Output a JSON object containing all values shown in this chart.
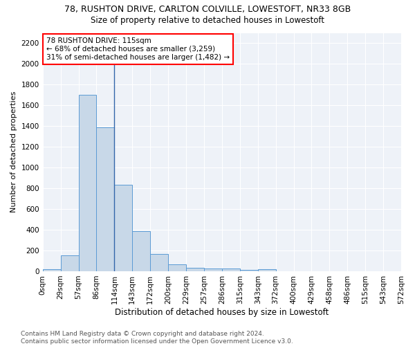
{
  "title1": "78, RUSHTON DRIVE, CARLTON COLVILLE, LOWESTOFT, NR33 8GB",
  "title2": "Size of property relative to detached houses in Lowestoft",
  "xlabel": "Distribution of detached houses by size in Lowestoft",
  "ylabel": "Number of detached properties",
  "bin_labels": [
    "0sqm",
    "29sqm",
    "57sqm",
    "86sqm",
    "114sqm",
    "143sqm",
    "172sqm",
    "200sqm",
    "229sqm",
    "257sqm",
    "286sqm",
    "315sqm",
    "343sqm",
    "372sqm",
    "400sqm",
    "429sqm",
    "458sqm",
    "486sqm",
    "515sqm",
    "543sqm",
    "572sqm"
  ],
  "bar_values": [
    20,
    155,
    1700,
    1390,
    835,
    390,
    165,
    68,
    32,
    28,
    27,
    10,
    18,
    0,
    0,
    0,
    0,
    0,
    0,
    0
  ],
  "bar_color": "#c8d8e8",
  "bar_edge_color": "#5b9bd5",
  "vline_x": 4,
  "vline_color": "#3366aa",
  "annotation_line1": "78 RUSHTON DRIVE: 115sqm",
  "annotation_line2": "← 68% of detached houses are smaller (3,259)",
  "annotation_line3": "31% of semi-detached houses are larger (1,482) →",
  "annotation_box_color": "white",
  "annotation_box_edge": "red",
  "ylim": [
    0,
    2300
  ],
  "yticks": [
    0,
    200,
    400,
    600,
    800,
    1000,
    1200,
    1400,
    1600,
    1800,
    2000,
    2200
  ],
  "bg_color": "#eef2f8",
  "footer": "Contains HM Land Registry data © Crown copyright and database right 2024.\nContains public sector information licensed under the Open Government Licence v3.0.",
  "title1_fontsize": 9,
  "title2_fontsize": 8.5,
  "xlabel_fontsize": 8.5,
  "ylabel_fontsize": 8,
  "tick_fontsize": 7.5,
  "annotation_fontsize": 7.5,
  "footer_fontsize": 6.5
}
